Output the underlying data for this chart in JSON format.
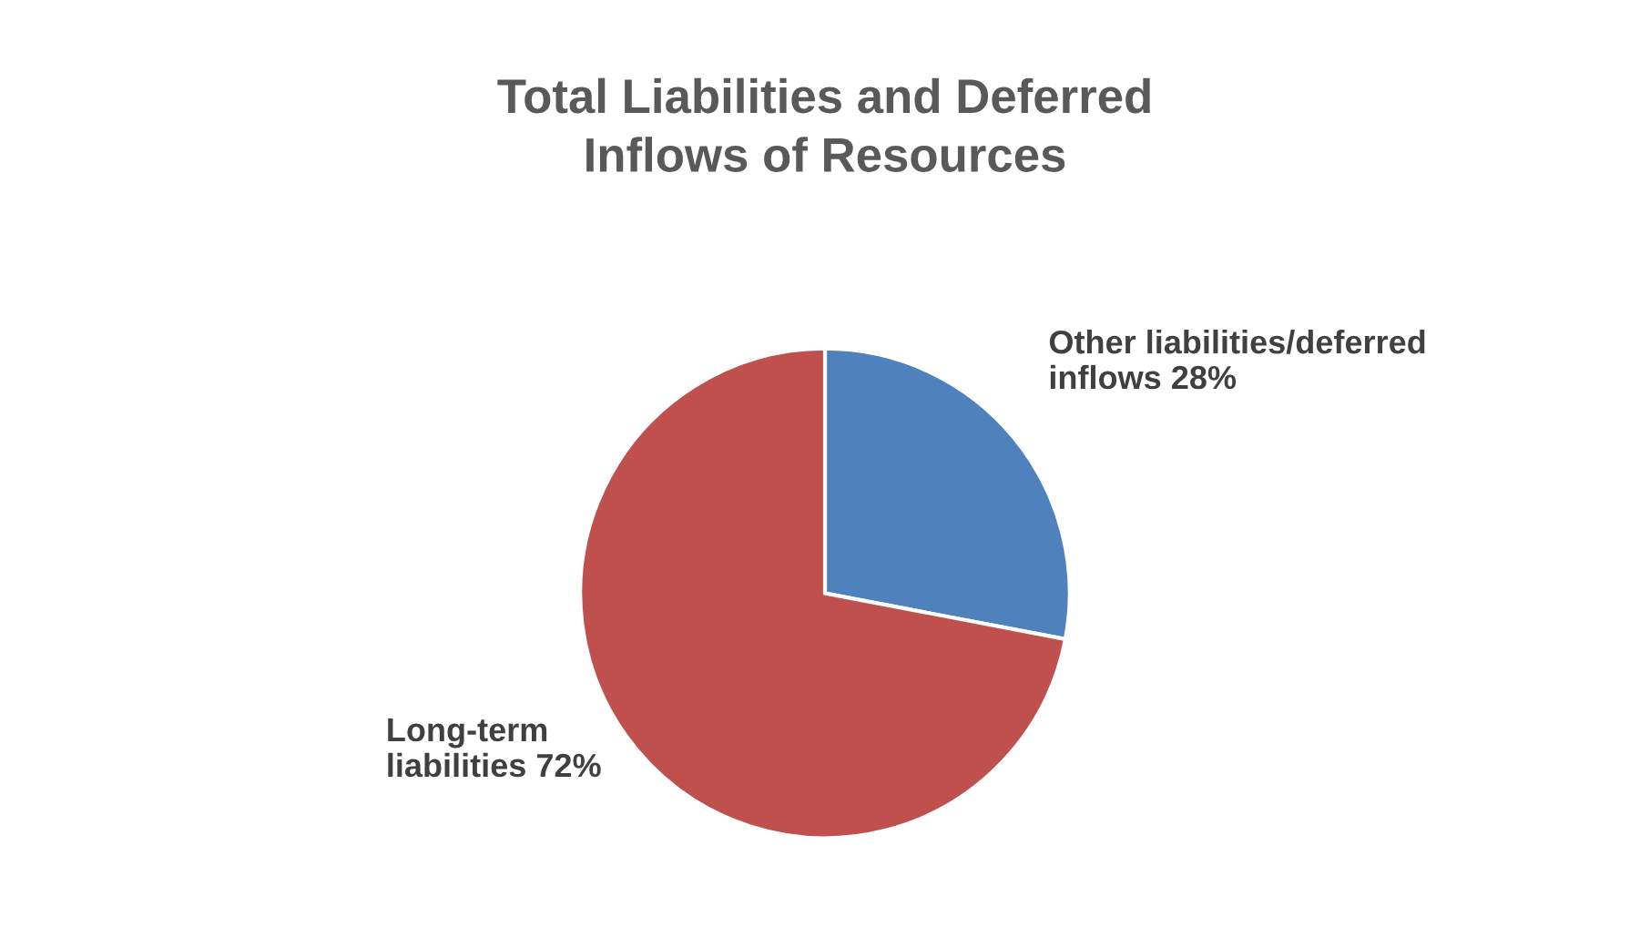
{
  "chart_data": {
    "type": "pie",
    "title": "Total Liabilities and Deferred\nInflows of Resources",
    "categories": [
      "Other liabilities/deferred inflows",
      "Long-term liabilities"
    ],
    "values": [
      28,
      72
    ],
    "value_labels": [
      "28%",
      "72%"
    ],
    "colors": [
      "#4f81bd",
      "#c0504d"
    ],
    "legend": false
  }
}
